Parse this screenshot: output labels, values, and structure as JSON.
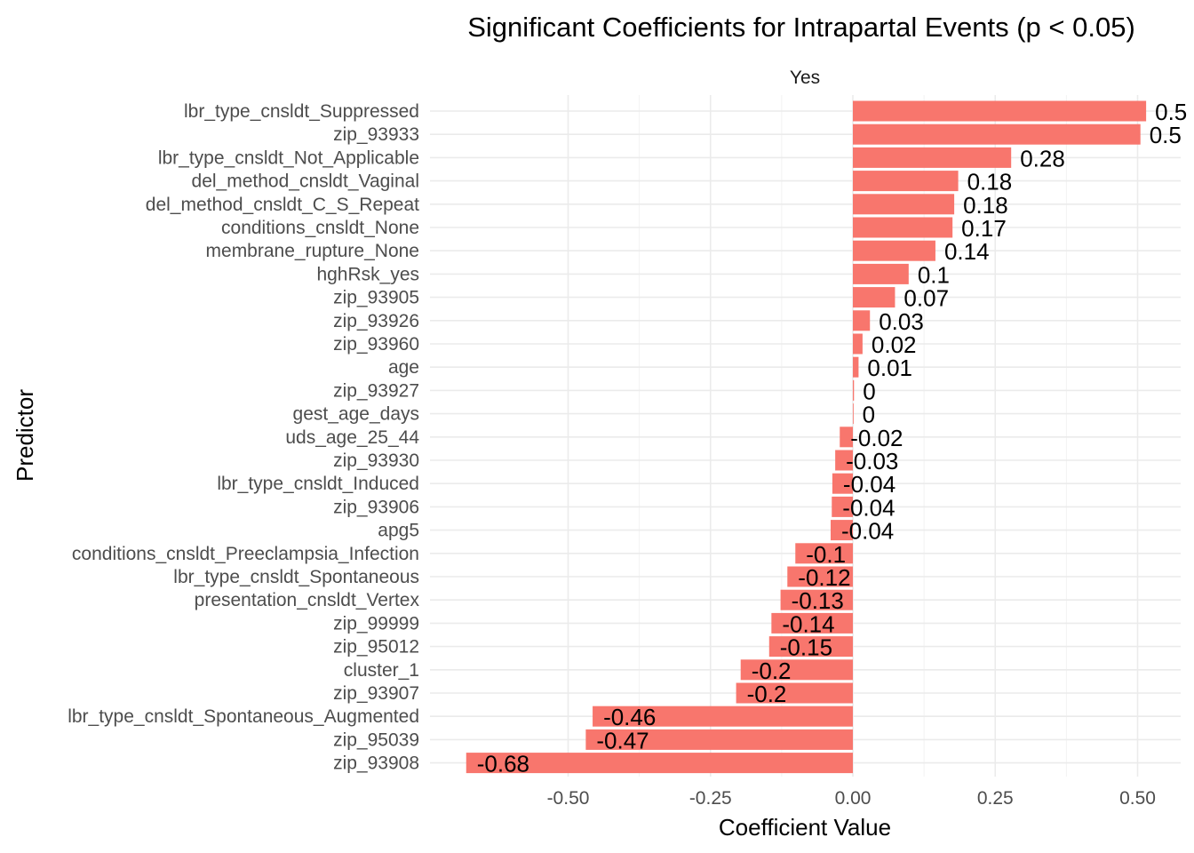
{
  "chart_data": {
    "type": "bar",
    "orientation": "horizontal",
    "title": "Significant Coefficients for Intrapartal Events (p < 0.05)",
    "facet_label": "Yes",
    "xlabel": "Coefficient Value",
    "ylabel": "Predictor",
    "xlim": [
      -0.72,
      0.58
    ],
    "xticks": [
      -0.5,
      -0.25,
      0.0,
      0.25,
      0.5
    ],
    "xtick_labels": [
      "-0.50",
      "-0.25",
      "0.00",
      "0.25",
      "0.50"
    ],
    "grid": true,
    "bar_color": "#F8766D",
    "categories": [
      "lbr_type_cnsldt_Suppressed",
      "zip_93933",
      "lbr_type_cnsldt_Not_Applicable",
      "del_method_cnsldt_Vaginal",
      "del_method_cnsldt_C_S_Repeat",
      "conditions_cnsldt_None",
      "membrane_rupture_None",
      "hghRsk_yes",
      "zip_93905",
      "zip_93926",
      "zip_93960",
      "age",
      "zip_93927",
      "gest_age_days",
      "uds_age_25_44",
      "zip_93930",
      "lbr_type_cnsldt_Induced",
      "zip_93906",
      "apg5",
      "conditions_cnsldt_Preeclampsia_Infection",
      "lbr_type_cnsldt_Spontaneous",
      "presentation_cnsldt_Vertex",
      "zip_99999",
      "zip_95012",
      "cluster_1",
      "zip_93907",
      "lbr_type_cnsldt_Spontaneous_Augmented",
      "zip_95039",
      "zip_93908"
    ],
    "values": [
      0.515,
      0.505,
      0.278,
      0.185,
      0.178,
      0.175,
      0.145,
      0.098,
      0.074,
      0.03,
      0.017,
      0.01,
      0.002,
      0.001,
      -0.023,
      -0.031,
      -0.036,
      -0.037,
      -0.039,
      -0.101,
      -0.115,
      -0.127,
      -0.143,
      -0.147,
      -0.197,
      -0.205,
      -0.457,
      -0.469,
      -0.679
    ],
    "labels": [
      "0.5",
      "0.5",
      "0.28",
      "0.18",
      "0.18",
      "0.17",
      "0.14",
      "0.1",
      "0.07",
      "0.03",
      "0.02",
      "0.01",
      "0",
      "0",
      "-0.02",
      "-0.03",
      "-0.04",
      "-0.04",
      "-0.04",
      "-0.1",
      "-0.12",
      "-0.13",
      "-0.14",
      "-0.15",
      "-0.2",
      "-0.2",
      "-0.46",
      "-0.47",
      "-0.68"
    ]
  }
}
